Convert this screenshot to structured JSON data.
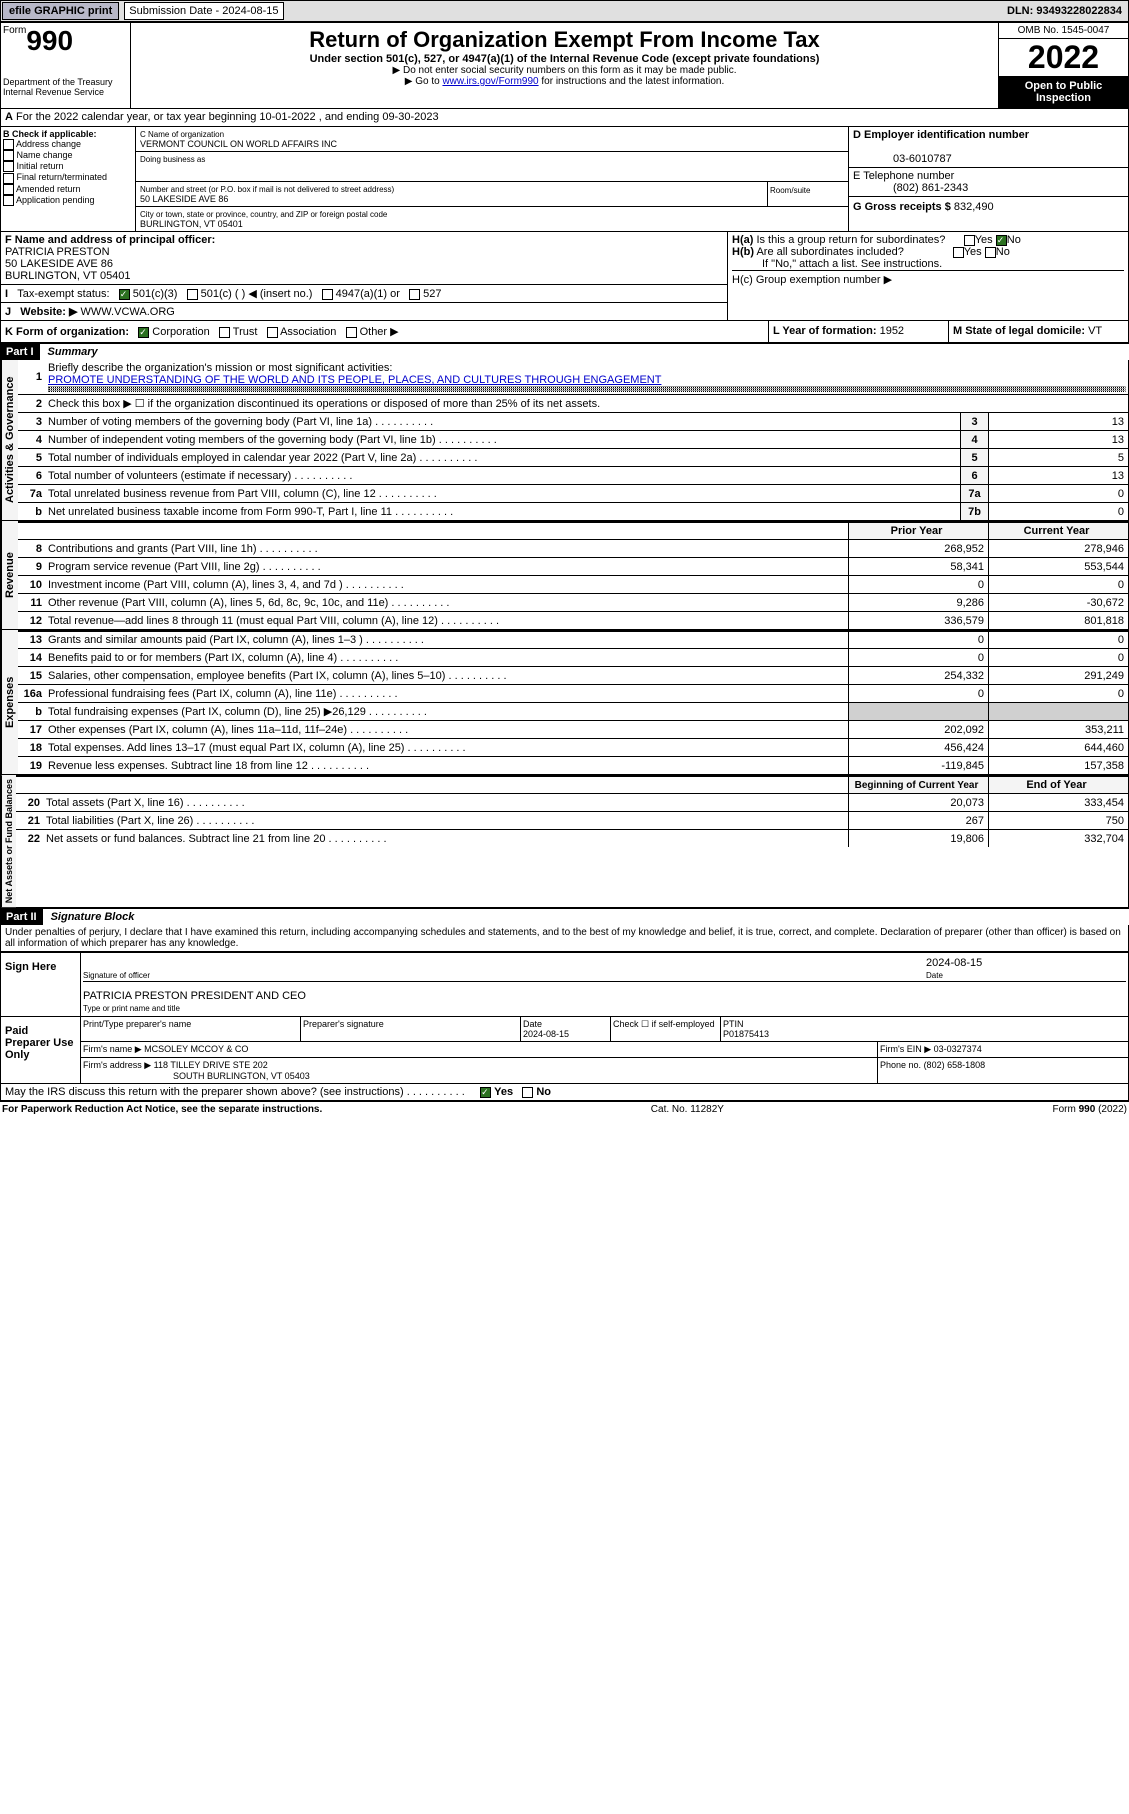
{
  "topbar": {
    "efile": "efile GRAPHIC print",
    "submission_label": "Submission Date - 2024-08-15",
    "dln": "DLN: 93493228022834"
  },
  "header": {
    "form_word": "Form",
    "form_num": "990",
    "title": "Return of Organization Exempt From Income Tax",
    "subtitle": "Under section 501(c), 527, or 4947(a)(1) of the Internal Revenue Code (except private foundations)",
    "note1": "▶ Do not enter social security numbers on this form as it may be made public.",
    "note2": "▶ Go to www.irs.gov/Form990 for instructions and the latest information.",
    "link": "www.irs.gov/Form990",
    "dept": "Department of the Treasury\nInternal Revenue Service",
    "omb": "OMB No. 1545-0047",
    "year": "2022",
    "open": "Open to Public Inspection"
  },
  "section_a": "For the 2022 calendar year, or tax year beginning 10-01-2022    , and ending 09-30-2023",
  "col_b": {
    "label": "B Check if applicable:",
    "items": [
      "Address change",
      "Name change",
      "Initial return",
      "Final return/terminated",
      "Amended return",
      "Application pending"
    ]
  },
  "col_c": {
    "name_label": "C Name of organization",
    "name": "VERMONT COUNCIL ON WORLD AFFAIRS INC",
    "dba_label": "Doing business as",
    "dba": "",
    "street_label": "Number and street (or P.O. box if mail is not delivered to street address)",
    "street": "50 LAKESIDE AVE 86",
    "room_label": "Room/suite",
    "city_label": "City or town, state or province, country, and ZIP or foreign postal code",
    "city": "BURLINGTON, VT  05401"
  },
  "col_d": {
    "label": "D Employer identification number",
    "ein": "03-6010787"
  },
  "col_e": {
    "label": "E Telephone number",
    "phone": "(802) 861-2343"
  },
  "col_g": {
    "label": "G Gross receipts $",
    "amount": "832,490"
  },
  "col_f": {
    "label": "F  Name and address of principal officer:",
    "name": "PATRICIA PRESTON",
    "addr1": "50 LAKESIDE AVE 86",
    "addr2": "BURLINGTON, VT  05401"
  },
  "col_h": {
    "a": "H(a)  Is this a group return for subordinates?",
    "b": "H(b)  Are all subordinates included?",
    "note": "If \"No,\" attach a list. See instructions.",
    "c": "H(c)  Group exemption number ▶"
  },
  "row_i": {
    "label": "Tax-exempt status:",
    "opts": [
      "501(c)(3)",
      "501(c) (  ) ◀ (insert no.)",
      "4947(a)(1) or",
      "527"
    ]
  },
  "row_j": {
    "label": "Website: ▶",
    "value": "WWW.VCWA.ORG"
  },
  "row_k": {
    "label": "K Form of organization:",
    "opts": [
      "Corporation",
      "Trust",
      "Association",
      "Other ▶"
    ]
  },
  "row_l": {
    "label": "L Year of formation:",
    "value": "1952"
  },
  "row_m": {
    "label": "M State of legal domicile:",
    "value": "VT"
  },
  "part1": {
    "header": "Part I",
    "title": "Summary"
  },
  "summary": {
    "mission_label": "Briefly describe the organization's mission or most significant activities:",
    "mission": "PROMOTE UNDERSTANDING OF THE WORLD AND ITS PEOPLE, PLACES, AND CULTURES THROUGH ENGAGEMENT",
    "line2": "Check this box ▶ ☐  if the organization discontinued its operations or disposed of more than 25% of its net assets.",
    "lines_single": [
      {
        "n": "3",
        "t": "Number of voting members of the governing body (Part VI, line 1a)",
        "box": "3",
        "v": "13"
      },
      {
        "n": "4",
        "t": "Number of independent voting members of the governing body (Part VI, line 1b)",
        "box": "4",
        "v": "13"
      },
      {
        "n": "5",
        "t": "Total number of individuals employed in calendar year 2022 (Part V, line 2a)",
        "box": "5",
        "v": "5"
      },
      {
        "n": "6",
        "t": "Total number of volunteers (estimate if necessary)",
        "box": "6",
        "v": "13"
      },
      {
        "n": "7a",
        "t": "Total unrelated business revenue from Part VIII, column (C), line 12",
        "box": "7a",
        "v": "0"
      },
      {
        "n": "b",
        "t": "Net unrelated business taxable income from Form 990-T, Part I, line 11",
        "box": "7b",
        "v": "0"
      }
    ],
    "col_headers": {
      "prior": "Prior Year",
      "current": "Current Year"
    },
    "revenue": [
      {
        "n": "8",
        "t": "Contributions and grants (Part VIII, line 1h)",
        "p": "268,952",
        "c": "278,946"
      },
      {
        "n": "9",
        "t": "Program service revenue (Part VIII, line 2g)",
        "p": "58,341",
        "c": "553,544"
      },
      {
        "n": "10",
        "t": "Investment income (Part VIII, column (A), lines 3, 4, and 7d )",
        "p": "0",
        "c": "0"
      },
      {
        "n": "11",
        "t": "Other revenue (Part VIII, column (A), lines 5, 6d, 8c, 9c, 10c, and 11e)",
        "p": "9,286",
        "c": "-30,672"
      },
      {
        "n": "12",
        "t": "Total revenue—add lines 8 through 11 (must equal Part VIII, column (A), line 12)",
        "p": "336,579",
        "c": "801,818"
      }
    ],
    "expenses": [
      {
        "n": "13",
        "t": "Grants and similar amounts paid (Part IX, column (A), lines 1–3 )",
        "p": "0",
        "c": "0"
      },
      {
        "n": "14",
        "t": "Benefits paid to or for members (Part IX, column (A), line 4)",
        "p": "0",
        "c": "0"
      },
      {
        "n": "15",
        "t": "Salaries, other compensation, employee benefits (Part IX, column (A), lines 5–10)",
        "p": "254,332",
        "c": "291,249"
      },
      {
        "n": "16a",
        "t": "Professional fundraising fees (Part IX, column (A), line 11e)",
        "p": "0",
        "c": "0"
      },
      {
        "n": "b",
        "t": "Total fundraising expenses (Part IX, column (D), line 25) ▶26,129",
        "p": "",
        "c": ""
      },
      {
        "n": "17",
        "t": "Other expenses (Part IX, column (A), lines 11a–11d, 11f–24e)",
        "p": "202,092",
        "c": "353,211"
      },
      {
        "n": "18",
        "t": "Total expenses. Add lines 13–17 (must equal Part IX, column (A), line 25)",
        "p": "456,424",
        "c": "644,460"
      },
      {
        "n": "19",
        "t": "Revenue less expenses. Subtract line 18 from line 12",
        "p": "-119,845",
        "c": "157,358"
      }
    ],
    "balance_headers": {
      "begin": "Beginning of Current Year",
      "end": "End of Year"
    },
    "balances": [
      {
        "n": "20",
        "t": "Total assets (Part X, line 16)",
        "p": "20,073",
        "c": "333,454"
      },
      {
        "n": "21",
        "t": "Total liabilities (Part X, line 26)",
        "p": "267",
        "c": "750"
      },
      {
        "n": "22",
        "t": "Net assets or fund balances. Subtract line 21 from line 20",
        "p": "19,806",
        "c": "332,704"
      }
    ]
  },
  "vlabels": {
    "gov": "Activities & Governance",
    "rev": "Revenue",
    "exp": "Expenses",
    "net": "Net Assets or Fund Balances"
  },
  "part2": {
    "header": "Part II",
    "title": "Signature Block"
  },
  "sig": {
    "penalty": "Under penalties of perjury, I declare that I have examined this return, including accompanying schedules and statements, and to the best of my knowledge and belief, it is true, correct, and complete. Declaration of preparer (other than officer) is based on all information of which preparer has any knowledge.",
    "sign_here": "Sign Here",
    "sig_officer": "Signature of officer",
    "date_label": "Date",
    "date": "2024-08-15",
    "name_title": "PATRICIA PRESTON  PRESIDENT AND CEO",
    "type_label": "Type or print name and title",
    "paid": "Paid Preparer Use Only",
    "prep_name_label": "Print/Type preparer's name",
    "prep_sig_label": "Preparer's signature",
    "prep_date_label": "Date",
    "prep_date": "2024-08-15",
    "check_label": "Check ☐ if self-employed",
    "ptin_label": "PTIN",
    "ptin": "P01875413",
    "firm_name_label": "Firm's name    ▶",
    "firm_name": "MCSOLEY MCCOY & CO",
    "firm_ein_label": "Firm's EIN ▶",
    "firm_ein": "03-0327374",
    "firm_addr_label": "Firm's address ▶",
    "firm_addr1": "118 TILLEY DRIVE STE 202",
    "firm_addr2": "SOUTH BURLINGTON, VT  05403",
    "firm_phone_label": "Phone no.",
    "firm_phone": "(802) 658-1808",
    "may_irs": "May the IRS discuss this return with the preparer shown above? (see instructions)"
  },
  "footer": {
    "left": "For Paperwork Reduction Act Notice, see the separate instructions.",
    "mid": "Cat. No. 11282Y",
    "right": "Form 990 (2022)"
  }
}
